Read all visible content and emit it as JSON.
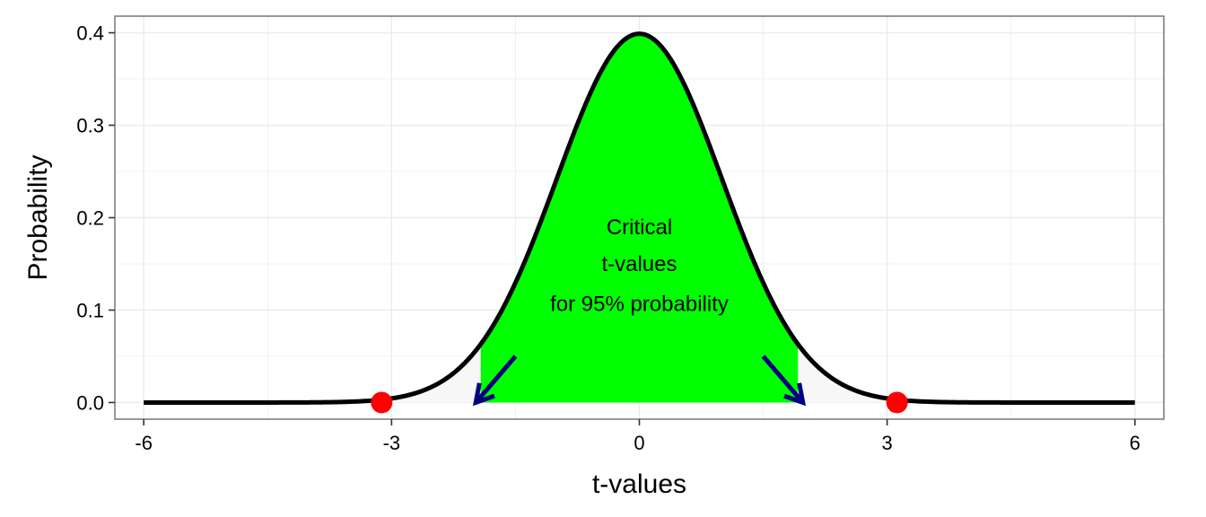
{
  "chart_data": {
    "type": "line",
    "title": "",
    "xlabel": "t-values",
    "ylabel": "Probability",
    "xlim": [
      -6.35,
      6.35
    ],
    "ylim": [
      -0.018,
      0.418
    ],
    "x_ticks": [
      -6,
      -3,
      0,
      3,
      6
    ],
    "x_tick_labels": [
      "-6",
      "-3",
      "0",
      "3",
      "6"
    ],
    "y_ticks": [
      0.0,
      0.1,
      0.2,
      0.3,
      0.4
    ],
    "y_tick_labels": [
      "0.0",
      "0.1",
      "0.2",
      "0.3",
      "0.4"
    ],
    "grid": true,
    "legend": "none",
    "curve": {
      "distribution": "normal",
      "mean": 0,
      "sd": 1,
      "x_range": [
        -6,
        6
      ],
      "color": "#000000"
    },
    "shaded_region": {
      "x_range": [
        -1.92,
        1.92
      ],
      "color": "#00ff00"
    },
    "tail_shading_color": "#f7f7f7",
    "points": [
      {
        "x": -3.12,
        "y": 0.0,
        "color": "#ff0000"
      },
      {
        "x": 3.12,
        "y": 0.0,
        "color": "#ff0000"
      }
    ],
    "arrows": [
      {
        "from": [
          -1.5,
          0.05
        ],
        "to": [
          -1.98,
          0.0
        ],
        "color": "#000080"
      },
      {
        "from": [
          1.5,
          0.05
        ],
        "to": [
          1.98,
          0.0
        ],
        "color": "#000080"
      }
    ],
    "annotation": {
      "lines": [
        "Critical",
        "t-values",
        "for 95% probability"
      ],
      "x": 0,
      "y": [
        0.19,
        0.15,
        0.107
      ]
    },
    "panel_background": "#ffffff",
    "grid_color": "#ebebeb",
    "panel_border_color": "#7f7f7f"
  }
}
